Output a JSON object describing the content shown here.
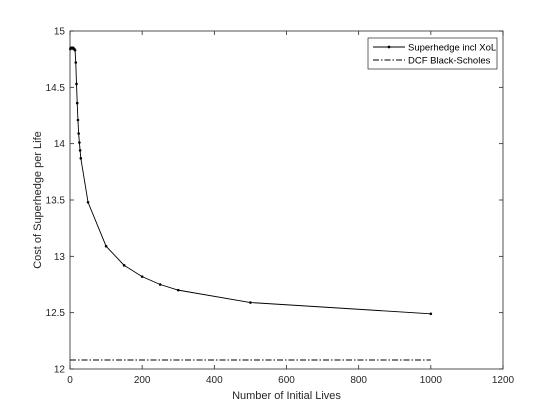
{
  "chart_data": {
    "type": "line",
    "xlabel": "Number of Initial Lives",
    "ylabel": "Cost of Superhedge per Life",
    "xlim": [
      0,
      1200
    ],
    "ylim": [
      12,
      15
    ],
    "xticks": [
      0,
      200,
      400,
      600,
      800,
      1000,
      1200
    ],
    "yticks": [
      12,
      12.5,
      13,
      13.5,
      14,
      14.5,
      15
    ],
    "xtick_labels": [
      "0",
      "200",
      "400",
      "600",
      "800",
      "1000",
      "1200"
    ],
    "ytick_labels": [
      "12",
      "12.5",
      "13",
      "13.5",
      "14",
      "14.5",
      "15"
    ],
    "grid": false,
    "legend_position": "top-right",
    "series": [
      {
        "name": "Superhedge incl XoL",
        "style": "solid-dot",
        "color": "#000000",
        "x": [
          1,
          2,
          3,
          4,
          5,
          6,
          7,
          8,
          9,
          10,
          12,
          14,
          16,
          18,
          20,
          22,
          24,
          26,
          28,
          30,
          50,
          100,
          150,
          200,
          250,
          300,
          500,
          1000
        ],
        "y": [
          14.84,
          14.85,
          14.85,
          14.85,
          14.85,
          14.85,
          14.85,
          14.85,
          14.85,
          14.84,
          14.84,
          14.83,
          14.72,
          14.53,
          14.36,
          14.21,
          14.09,
          14.01,
          13.94,
          13.87,
          13.48,
          13.09,
          12.92,
          12.82,
          12.75,
          12.7,
          12.59,
          12.49
        ]
      },
      {
        "name": "DCF Black-Scholes",
        "style": "dash-dot",
        "color": "#000000",
        "x": [
          0,
          1000
        ],
        "y": [
          12.08,
          12.08
        ]
      }
    ]
  }
}
